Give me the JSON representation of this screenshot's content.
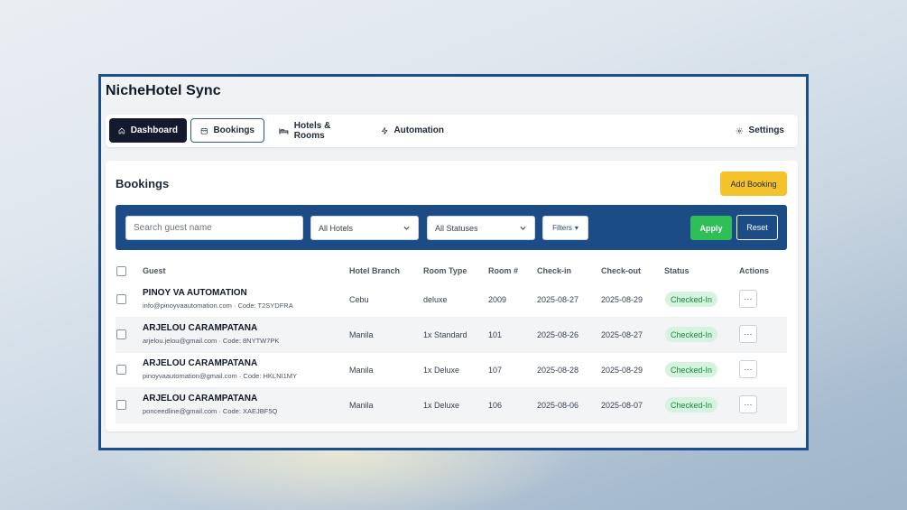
{
  "app": {
    "title": "NicheHotel Sync"
  },
  "nav": {
    "dashboard": "Dashboard",
    "bookings": "Bookings",
    "hotels_rooms": "Hotels & Rooms",
    "automation": "Automation",
    "settings": "Settings"
  },
  "page": {
    "title": "Bookings",
    "add_button": "Add Booking"
  },
  "filters": {
    "search_placeholder": "Search guest name",
    "hotels_selected": "All Hotels",
    "status_selected": "All Statuses",
    "filters_label": "Filters",
    "apply_label": "Apply",
    "reset_label": "Reset"
  },
  "table": {
    "headers": {
      "guest": "Guest",
      "branch": "Hotel Branch",
      "room_type": "Room Type",
      "room_no": "Room #",
      "checkin": "Check-in",
      "checkout": "Check-out",
      "status": "Status",
      "actions": "Actions"
    },
    "rows": [
      {
        "name": "PINOY VA AUTOMATION",
        "sub": "info@pinoyvaautomation.com · Code: T2SYDFRA",
        "branch": "Cebu",
        "room_type": "deluxe",
        "room": "2009",
        "checkin": "2025-08-27",
        "checkout": "2025-08-29",
        "status": "Checked-In",
        "action": "···"
      },
      {
        "name": "ARJELOU CARAMPATANA",
        "sub": "arjelou.jelou@gmail.com · Code: 8NYTW7PK",
        "branch": "Manila",
        "room_type": "1x Standard",
        "room": "101",
        "checkin": "2025-08-26",
        "checkout": "2025-08-27",
        "status": "Checked-In",
        "action": "···"
      },
      {
        "name": "ARJELOU CARAMPATANA",
        "sub": "pinoyvaautomation@gmail.com · Code: HKLNI1MY",
        "branch": "Manila",
        "room_type": "1x Deluxe",
        "room": "107",
        "checkin": "2025-08-28",
        "checkout": "2025-08-29",
        "status": "Checked-In",
        "action": "···"
      },
      {
        "name": "ARJELOU CARAMPATANA",
        "sub": "ponceedline@gmail.com · Code: XAEJBF5Q",
        "branch": "Manila",
        "room_type": "1x Deluxe",
        "room": "106",
        "checkin": "2025-08-06",
        "checkout": "2025-08-07",
        "status": "Checked-In",
        "action": "···"
      }
    ]
  },
  "colors": {
    "frame_border": "#1d4e8c",
    "nav_active": "#131a2e",
    "filter_bar": "#1b4c86",
    "add_button": "#f4c22b",
    "apply_button": "#2fbf57",
    "status_badge_bg": "#d6f3df",
    "status_badge_text": "#188a3a"
  },
  "icons": {
    "dashboard": "home-icon",
    "bookings": "calendar-icon",
    "hotels_rooms": "bed-icon",
    "automation": "lightning-icon",
    "settings": "gear-icon"
  }
}
